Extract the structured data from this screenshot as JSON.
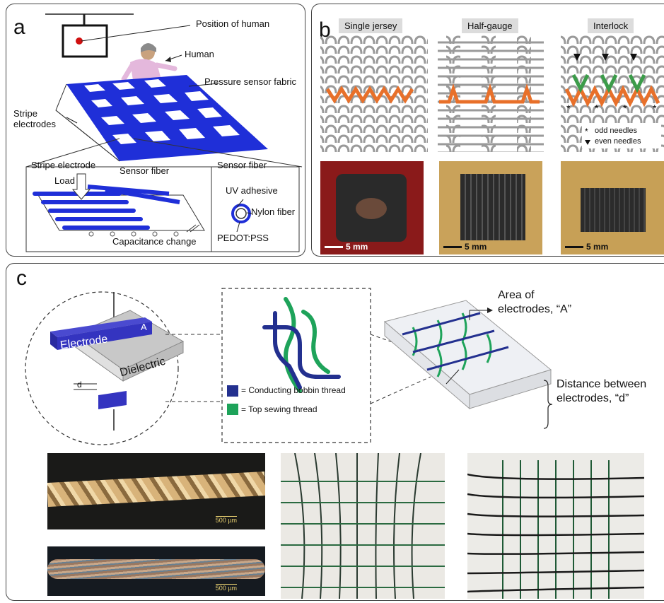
{
  "panel_a": {
    "label": "a",
    "position_of_human": "Position of human",
    "human": "Human",
    "pressure_sensor_fabric": "Pressure sensor fabric",
    "stripe_electrodes_line1": "Stripe",
    "stripe_electrodes_line2": "electrodes",
    "stripe_electrode": "Stripe electrode",
    "load": "Load",
    "sensor_fiber": "Sensor fiber",
    "sensor_fiber_right": "Sensor fiber",
    "uv_adhesive": "UV adhesive",
    "nylon_fiber": "Nylon fiber",
    "pedot": "PEDOT:PSS",
    "capacitance_change": "Capacitance change"
  },
  "panel_b": {
    "label": "b",
    "single_jersey": "Single jersey",
    "half_gauge": "Half-gauge",
    "interlock": "Interlock",
    "odd_needles": "odd needles",
    "even_needles": "even needles",
    "scale1": "5 mm",
    "scale2": "5 mm",
    "scale3": "5 mm"
  },
  "panel_c": {
    "label": "c",
    "electrode": "Electrode",
    "a_label": "A",
    "dielectric": "Dielectric",
    "d_label": "d",
    "legend_conducting": "= Conducting bobbin thread",
    "legend_top": "= Top sewing thread",
    "area_line1": "Area of",
    "area_line2": "electrodes, “A”",
    "distance_line1": "Distance between",
    "distance_line2": "electrodes, “d”",
    "scale_micro1": "500 µm",
    "scale_micro2": "500 µm"
  },
  "colors": {
    "electrode_blue": "#1f2fd8",
    "knit_orange": "#e8702a",
    "knit_green": "#3c9c4a",
    "bobbin_navy": "#23308f",
    "sewing_green": "#1ea35a"
  }
}
